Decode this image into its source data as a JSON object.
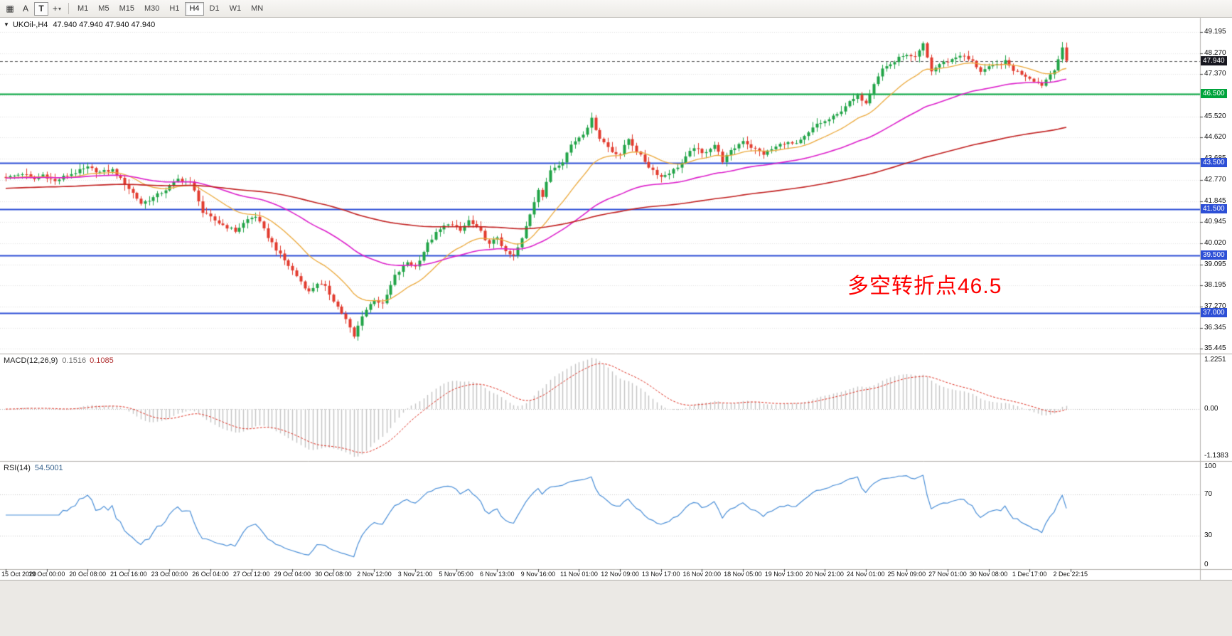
{
  "chart_data": {
    "type": "candlestick",
    "symbol": "UKOil-",
    "timeframe": "H4",
    "last_price": 47.94,
    "ohlc_display": "47.940 47.940 47.940 47.940",
    "visible_time_range": [
      "15 Oct 2020",
      "2 Dec 22:15"
    ],
    "price_axis_range": [
      35.445,
      49.195
    ],
    "horizontal_levels": [
      46.5,
      43.5,
      41.5,
      39.5,
      37.0
    ],
    "macd_values": [
      0.1516,
      0.1085
    ],
    "rsi_value": 54.5001
  },
  "toolbar": {
    "grid_icon": "▦",
    "a_label": "A",
    "t_label": "T",
    "crosshair_icon": "+",
    "dropdown_icon": "▾",
    "timeframes": [
      "M1",
      "M5",
      "M15",
      "M30",
      "H1",
      "H4",
      "D1",
      "W1",
      "MN"
    ],
    "selected_timeframe": "H4"
  },
  "chart": {
    "symbol_marker": "▼",
    "symbol_label": "UKOil-,H4",
    "ohlc_text": "47.940 47.940 47.940 47.940",
    "annotation": {
      "text": "多空转折点46.5",
      "color": "#fe0000"
    },
    "current_price": 47.94,
    "scale": {
      "top_price": 49.81,
      "bottom_price": 35.23
    },
    "price_axis_labels": [
      "49.195",
      "48.270",
      "47.370",
      "45.520",
      "44.620",
      "43.685",
      "42.770",
      "41.845",
      "40.945",
      "40.020",
      "39.095",
      "38.195",
      "37.270",
      "36.345",
      "35.445"
    ],
    "grid_prices": [
      49.195,
      48.27,
      47.37,
      46.445,
      45.52,
      44.62,
      43.685,
      42.77,
      41.845,
      40.945,
      40.02,
      39.095,
      38.195,
      37.27,
      36.345,
      35.445
    ],
    "axis_badges": [
      {
        "text": "47.940",
        "price": 47.94,
        "bg": "#17171f"
      },
      {
        "text": "46.500",
        "price": 46.5,
        "bg": "#00a43c"
      },
      {
        "text": "43.500",
        "price": 43.5,
        "bg": "#2d4fd6"
      },
      {
        "text": "41.500",
        "price": 41.5,
        "bg": "#2d4fd6"
      },
      {
        "text": "39.500",
        "price": 39.5,
        "bg": "#2d4fd6"
      },
      {
        "text": "37.000",
        "price": 37.0,
        "bg": "#2d4fd6"
      }
    ],
    "levels": [
      {
        "price": 46.5,
        "color": "#00a43c",
        "width": 2
      },
      {
        "price": 43.5,
        "color": "#2d4fd6",
        "width": 2
      },
      {
        "price": 41.5,
        "color": "#2d4fd6",
        "width": 2
      },
      {
        "price": 39.5,
        "color": "#2d4fd6",
        "width": 2
      },
      {
        "price": 37.0,
        "color": "#2d4fd6",
        "width": 2
      }
    ],
    "candles": {
      "count": 260,
      "up_color": "#21a447",
      "down_color": "#e23b2e",
      "anchors": [
        [
          0,
          42.85
        ],
        [
          4,
          43.05
        ],
        [
          7,
          42.8
        ],
        [
          9,
          43.0
        ],
        [
          12,
          42.7
        ],
        [
          14,
          42.9
        ],
        [
          17,
          43.1
        ],
        [
          20,
          43.3
        ],
        [
          23,
          43.1
        ],
        [
          26,
          43.2
        ],
        [
          29,
          42.6
        ],
        [
          31,
          42.2
        ],
        [
          33,
          41.75
        ],
        [
          36,
          42.0
        ],
        [
          39,
          42.35
        ],
        [
          42,
          42.8
        ],
        [
          45,
          42.65
        ],
        [
          47,
          41.9
        ],
        [
          48,
          41.35
        ],
        [
          52,
          40.9
        ],
        [
          56,
          40.55
        ],
        [
          59,
          41.05
        ],
        [
          61,
          41.2
        ],
        [
          64,
          40.3
        ],
        [
          67,
          39.5
        ],
        [
          71,
          38.6
        ],
        [
          74,
          37.9
        ],
        [
          76,
          38.3
        ],
        [
          78,
          38.1
        ],
        [
          80,
          37.55
        ],
        [
          83,
          36.7
        ],
        [
          85,
          35.95
        ],
        [
          87,
          36.9
        ],
        [
          90,
          37.6
        ],
        [
          92,
          37.35
        ],
        [
          95,
          38.6
        ],
        [
          98,
          39.2
        ],
        [
          100,
          39.0
        ],
        [
          103,
          40.0
        ],
        [
          105,
          40.45
        ],
        [
          108,
          40.9
        ],
        [
          111,
          40.55
        ],
        [
          113,
          41.0
        ],
        [
          116,
          40.5
        ],
        [
          118,
          39.95
        ],
        [
          120,
          40.3
        ],
        [
          122,
          39.6
        ],
        [
          124,
          39.45
        ],
        [
          126,
          40.2
        ],
        [
          128,
          41.3
        ],
        [
          130,
          42.4
        ],
        [
          131,
          42.05
        ],
        [
          133,
          43.2
        ],
        [
          136,
          43.6
        ],
        [
          138,
          44.3
        ],
        [
          141,
          44.8
        ],
        [
          143,
          45.4
        ],
        [
          145,
          44.6
        ],
        [
          148,
          44.0
        ],
        [
          150,
          43.9
        ],
        [
          152,
          44.55
        ],
        [
          155,
          43.8
        ],
        [
          157,
          43.35
        ],
        [
          160,
          42.9
        ],
        [
          163,
          43.2
        ],
        [
          165,
          43.5
        ],
        [
          168,
          44.2
        ],
        [
          170,
          43.9
        ],
        [
          173,
          44.3
        ],
        [
          175,
          43.6
        ],
        [
          177,
          44.0
        ],
        [
          180,
          44.5
        ],
        [
          182,
          44.2
        ],
        [
          185,
          43.9
        ],
        [
          188,
          44.2
        ],
        [
          190,
          44.4
        ],
        [
          193,
          44.3
        ],
        [
          196,
          44.8
        ],
        [
          198,
          45.2
        ],
        [
          200,
          45.3
        ],
        [
          203,
          45.6
        ],
        [
          205,
          46.0
        ],
        [
          208,
          46.4
        ],
        [
          210,
          46.15
        ],
        [
          212,
          47.0
        ],
        [
          214,
          47.6
        ],
        [
          217,
          47.9
        ],
        [
          219,
          48.2
        ],
        [
          222,
          48.05
        ],
        [
          224,
          48.65
        ],
        [
          226,
          47.5
        ],
        [
          228,
          47.8
        ],
        [
          231,
          48.0
        ],
        [
          233,
          48.2
        ],
        [
          236,
          47.9
        ],
        [
          238,
          47.5
        ],
        [
          241,
          47.7
        ],
        [
          244,
          47.9
        ],
        [
          246,
          47.55
        ],
        [
          249,
          47.3
        ],
        [
          251,
          47.1
        ],
        [
          253,
          46.9
        ],
        [
          256,
          47.6
        ],
        [
          258,
          48.45
        ],
        [
          259,
          47.94
        ]
      ]
    },
    "mas": [
      {
        "period": 18,
        "color": "#ecaa3d",
        "width": 1.3
      },
      {
        "period": 55,
        "color": "#dd22cc",
        "width": 1.6
      },
      {
        "period": 170,
        "color": "#c22222",
        "width": 1.6,
        "seed": 42.4
      }
    ]
  },
  "macd": {
    "label": "MACD(12,26,9)",
    "value_main": "0.1516",
    "value_signal": "0.1085",
    "axis_labels": [
      "1.2251",
      "0.00",
      "-1.1383"
    ],
    "max": 1.2251,
    "min": -1.1383,
    "hist_color": "#c4c4c4",
    "signal_color": "#e03224"
  },
  "rsi": {
    "label": "RSI(14)",
    "value_text": "54.5001",
    "period": 14,
    "axis_labels": [
      "100",
      "70",
      "30",
      "0"
    ],
    "levels": [
      70,
      30
    ],
    "line_color": "#4a8fd8"
  },
  "time_axis": {
    "labels": [
      "15 Oct 2020",
      "19 Oct 00:00",
      "20 Oct 08:00",
      "21 Oct 16:00",
      "23 Oct 00:00",
      "26 Oct 04:00",
      "27 Oct 12:00",
      "29 Oct 04:00",
      "30 Oct 08:00",
      "2 Nov 12:00",
      "3 Nov 21:00",
      "5 Nov 05:00",
      "6 Nov 13:00",
      "9 Nov 16:00",
      "11 Nov 01:00",
      "12 Nov 09:00",
      "13 Nov 17:00",
      "16 Nov 20:00",
      "18 Nov 05:00",
      "19 Nov 13:00",
      "20 Nov 21:00",
      "24 Nov 01:00",
      "25 Nov 09:00",
      "27 Nov 01:00",
      "30 Nov 08:00",
      "1 Dec 17:00",
      "2 Dec 22:15"
    ]
  }
}
